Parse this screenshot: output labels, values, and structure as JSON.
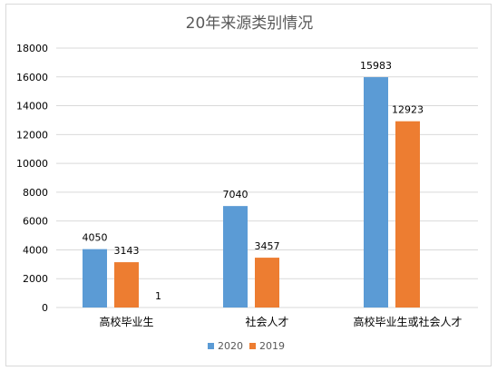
{
  "chart_data": {
    "type": "bar",
    "title": "20年来源类别情况",
    "categories": [
      "高校毕业生",
      "社会人才",
      "高校毕业生或社会人才"
    ],
    "series": [
      {
        "name": "2020",
        "values": [
          4050,
          7040,
          15983
        ],
        "color": "#5b9bd5"
      },
      {
        "name": "2019",
        "values": [
          3143,
          3457,
          12923
        ],
        "color": "#ed7d31"
      },
      {
        "name": "",
        "values": [
          1,
          null,
          null
        ],
        "color": "#a5a5a5"
      }
    ],
    "ylim": [
      0,
      18000
    ],
    "yticks": [
      0,
      2000,
      4000,
      6000,
      8000,
      10000,
      12000,
      14000,
      16000,
      18000
    ],
    "xlabel": "",
    "ylabel": "",
    "grid": true,
    "legend_position": "bottom"
  }
}
